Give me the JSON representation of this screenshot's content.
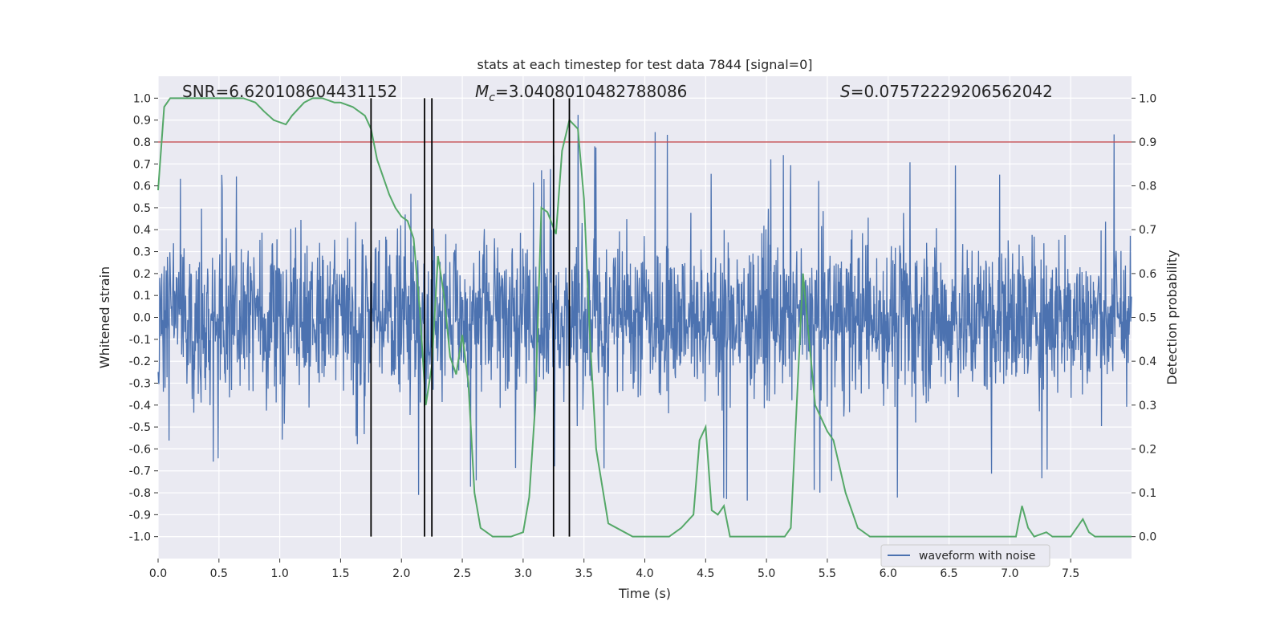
{
  "chart_data": {
    "type": "line",
    "title": "stats at each timestep for test data 7844 [signal=0]",
    "xlabel": "Time (s)",
    "ylabel": "Whitened strain",
    "y2label": "Detection probability",
    "xlim": [
      0.0,
      8.0
    ],
    "ylim": [
      -1.1,
      1.1
    ],
    "y2lim": [
      -0.05,
      1.05
    ],
    "xticks": [
      "0.0",
      "0.5",
      "1.0",
      "1.5",
      "2.0",
      "2.5",
      "3.0",
      "3.5",
      "4.0",
      "4.5",
      "5.0",
      "5.5",
      "6.0",
      "6.5",
      "7.0",
      "7.5"
    ],
    "yticks": [
      "1.0",
      "0.9",
      "0.8",
      "0.7",
      "0.6",
      "0.5",
      "0.4",
      "0.3",
      "0.2",
      "0.1",
      "0.0",
      "-0.1",
      "-0.2",
      "-0.3",
      "-0.4",
      "-0.5",
      "-0.6",
      "-0.7",
      "-0.8",
      "-0.9",
      "-1.0"
    ],
    "y2ticks": [
      "1.0",
      "0.9",
      "0.8",
      "0.7",
      "0.6",
      "0.5",
      "0.4",
      "0.3",
      "0.2",
      "0.1",
      "0.0"
    ],
    "grid": true,
    "legend": {
      "location": "lower-right",
      "entries": [
        "waveform with noise"
      ]
    },
    "annotations": {
      "snr": "SNR=6.620108604431152",
      "mc_symbol": "M",
      "mc_sub": "c",
      "mc_value": "=3.0408010482788086",
      "s_symbol": "S",
      "s_value": "=0.07572229206562042"
    },
    "threshold": {
      "axis": "right",
      "value": 0.9,
      "color": "#c44e52"
    },
    "vertical_lines": [
      1.75,
      2.19,
      2.25,
      3.25,
      3.38
    ],
    "colors": {
      "waveform": "#4c72b0",
      "probability": "#55a868",
      "vlines": "#000000",
      "background": "#eaeaf2"
    },
    "waveform_note_envelope": {
      "times": [
        0.0,
        0.25,
        0.5,
        0.75,
        1.0,
        1.25,
        1.5,
        1.75,
        2.0,
        2.25,
        2.5,
        2.75,
        3.0,
        3.25,
        3.5,
        3.75,
        4.0,
        4.25,
        4.5,
        4.75,
        5.0,
        5.25,
        5.5,
        5.75,
        6.0,
        6.25,
        6.5,
        6.75,
        7.0,
        7.25,
        7.5,
        7.75,
        8.0
      ],
      "upper": [
        0.55,
        0.77,
        0.65,
        0.72,
        0.75,
        0.7,
        0.6,
        0.62,
        0.6,
        0.8,
        0.85,
        0.75,
        0.65,
        0.75,
        1.0,
        0.72,
        0.95,
        0.82,
        0.7,
        0.72,
        0.8,
        0.75,
        0.72,
        0.8,
        0.78,
        0.82,
        0.75,
        0.8,
        0.72,
        0.75,
        0.8,
        0.95,
        0.7
      ],
      "lower": [
        -0.6,
        -0.78,
        -0.7,
        -0.75,
        -0.65,
        -0.72,
        -0.65,
        -0.6,
        -0.9,
        -0.88,
        -0.82,
        -0.85,
        -0.7,
        -0.72,
        -0.75,
        -0.7,
        -0.8,
        -0.72,
        -0.8,
        -0.85,
        -0.95,
        -0.75,
        -0.86,
        -0.7,
        -0.88,
        -0.75,
        -0.7,
        -0.72,
        -0.85,
        -0.75,
        -0.8,
        -0.97,
        -0.68
      ]
    },
    "series": [
      {
        "name": "waveform with noise",
        "axis": "left",
        "style": "dense-noise"
      },
      {
        "axis": "right",
        "x": [
          0.0,
          0.05,
          0.1,
          0.3,
          0.5,
          0.7,
          0.8,
          0.87,
          0.95,
          1.05,
          1.1,
          1.2,
          1.27,
          1.35,
          1.45,
          1.5,
          1.6,
          1.7,
          1.75,
          1.8,
          1.9,
          1.95,
          2.0,
          2.05,
          2.1,
          2.15,
          2.2,
          2.25,
          2.3,
          2.35,
          2.4,
          2.45,
          2.5,
          2.55,
          2.6,
          2.65,
          2.75,
          2.9,
          3.0,
          3.05,
          3.1,
          3.15,
          3.2,
          3.27,
          3.32,
          3.38,
          3.45,
          3.5,
          3.55,
          3.6,
          3.7,
          3.9,
          4.0,
          4.1,
          4.2,
          4.3,
          4.4,
          4.45,
          4.5,
          4.55,
          4.6,
          4.65,
          4.7,
          4.85,
          4.9,
          5.0,
          5.15,
          5.2,
          5.3,
          5.4,
          5.5,
          5.55,
          5.65,
          5.75,
          5.85,
          6.0,
          6.2,
          6.5,
          6.8,
          7.0,
          7.05,
          7.1,
          7.15,
          7.2,
          7.3,
          7.35,
          7.4,
          7.5,
          7.6,
          7.65,
          7.7,
          7.75,
          7.8,
          7.9,
          8.0
        ],
        "y": [
          0.79,
          0.98,
          1.0,
          1.0,
          1.0,
          1.0,
          0.99,
          0.97,
          0.95,
          0.94,
          0.96,
          0.99,
          1.0,
          1.0,
          0.99,
          0.99,
          0.98,
          0.96,
          0.93,
          0.86,
          0.78,
          0.75,
          0.73,
          0.72,
          0.68,
          0.52,
          0.3,
          0.39,
          0.64,
          0.55,
          0.41,
          0.37,
          0.46,
          0.35,
          0.1,
          0.02,
          0.0,
          0.0,
          0.01,
          0.09,
          0.3,
          0.75,
          0.74,
          0.69,
          0.88,
          0.95,
          0.93,
          0.77,
          0.45,
          0.2,
          0.03,
          0.0,
          0.0,
          0.0,
          0.0,
          0.02,
          0.05,
          0.22,
          0.25,
          0.06,
          0.05,
          0.07,
          0.0,
          0.0,
          0.0,
          0.0,
          0.0,
          0.02,
          0.6,
          0.3,
          0.24,
          0.22,
          0.1,
          0.02,
          0.0,
          0.0,
          0.0,
          0.0,
          0.0,
          0.0,
          0.0,
          0.07,
          0.02,
          0.0,
          0.01,
          0.0,
          0.0,
          0.0,
          0.04,
          0.01,
          0.0,
          0.0,
          0.0,
          0.0,
          0.0
        ]
      }
    ]
  }
}
